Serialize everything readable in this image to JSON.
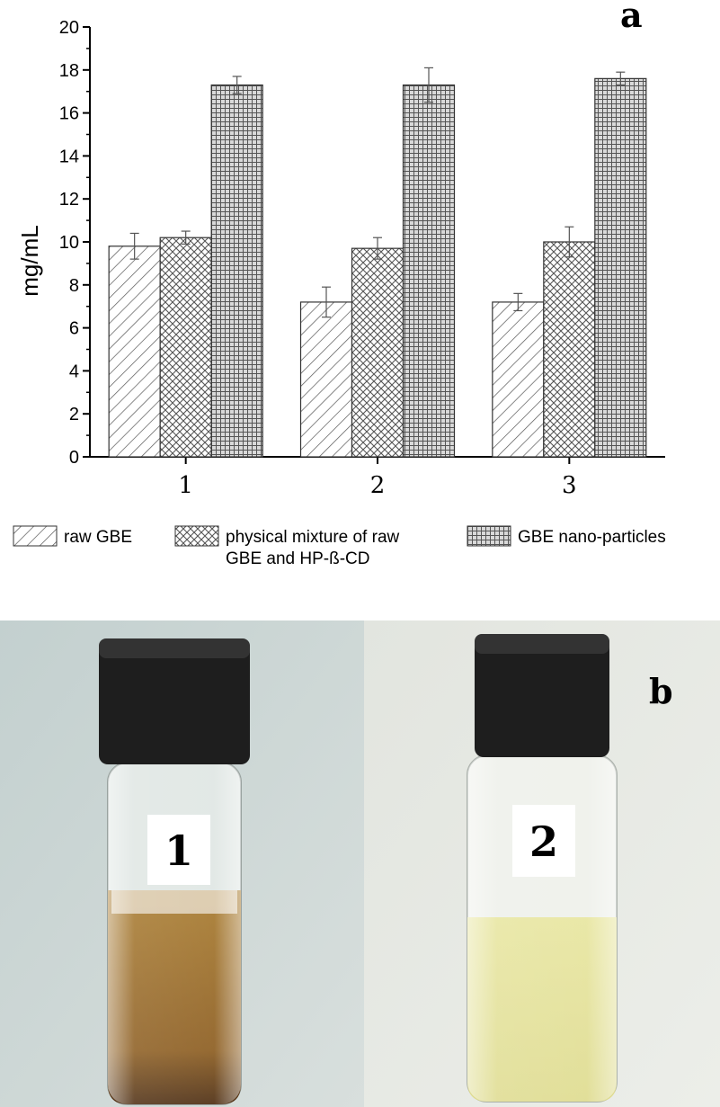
{
  "panel_a_letter": "a",
  "panel_b_letter": "b",
  "chart_data": {
    "type": "bar",
    "categories": [
      "1",
      "2",
      "3"
    ],
    "ylabel": "mg/mL",
    "xlabel": "",
    "ylim": [
      0,
      20
    ],
    "yticks": [
      0,
      2,
      4,
      6,
      8,
      10,
      12,
      14,
      16,
      18,
      20
    ],
    "grid": false,
    "legend_position": "bottom",
    "series": [
      {
        "name": "raw GBE",
        "name_lines": [
          "raw GBE"
        ],
        "pattern": "diagonal-hatch",
        "values": [
          9.8,
          7.2,
          7.2
        ],
        "errors": [
          0.6,
          0.7,
          0.4
        ]
      },
      {
        "name": "physical mixture of raw GBE and HP-ß-CD",
        "name_lines": [
          "physical mixture of raw",
          "GBE and HP-ß-CD"
        ],
        "pattern": "cross-hatch",
        "values": [
          10.2,
          9.7,
          10.0
        ],
        "errors": [
          0.3,
          0.5,
          0.7
        ]
      },
      {
        "name": "GBE nano-particles",
        "name_lines": [
          "GBE nano-particles"
        ],
        "pattern": "grid-dots",
        "values": [
          17.3,
          17.3,
          17.6
        ],
        "errors": [
          0.4,
          0.8,
          0.3
        ]
      }
    ]
  },
  "photo": {
    "vials": [
      {
        "label": "1",
        "liquid_color": "#9a6a22",
        "liquid_bottom_color": "#5a3512"
      },
      {
        "label": "2",
        "liquid_color": "#e9e7a0",
        "liquid_bottom_color": "#d8d58a"
      }
    ]
  }
}
